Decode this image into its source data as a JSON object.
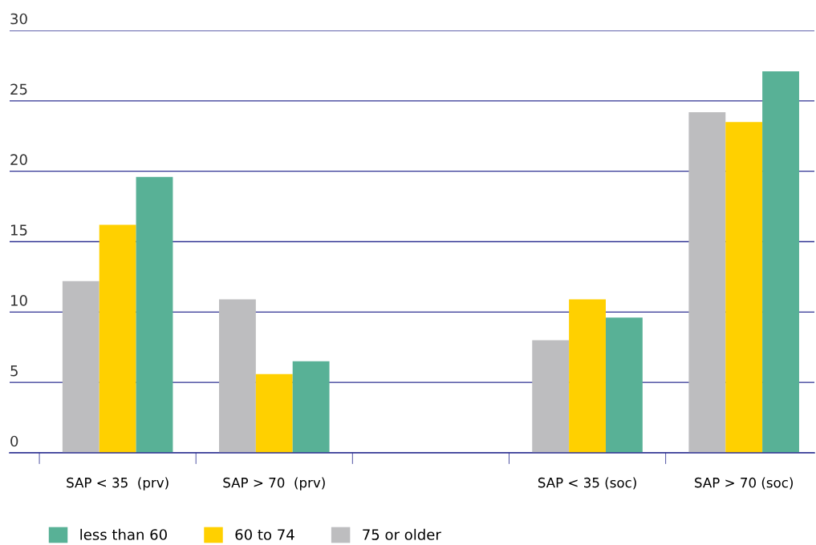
{
  "chart_data": {
    "type": "bar",
    "categories": [
      "SAP < 35  (prv)",
      "SAP > 70  (prv)",
      null,
      "SAP < 35 (soc)",
      "SAP > 70 (soc)"
    ],
    "series": [
      {
        "name": "75 or older",
        "color": "#bdbdbf",
        "values": [
          12.2,
          10.9,
          null,
          8.0,
          24.2
        ]
      },
      {
        "name": "60 to 74",
        "color": "#ffd000",
        "values": [
          16.2,
          5.6,
          null,
          10.9,
          23.5
        ]
      },
      {
        "name": "less than 60",
        "color": "#58b196",
        "values": [
          19.6,
          6.5,
          null,
          9.6,
          27.1
        ]
      }
    ],
    "ylim": [
      0,
      30
    ],
    "yticks": [
      0,
      5,
      10,
      15,
      20,
      25,
      30
    ],
    "grid": "y",
    "legend": "bottom left"
  }
}
